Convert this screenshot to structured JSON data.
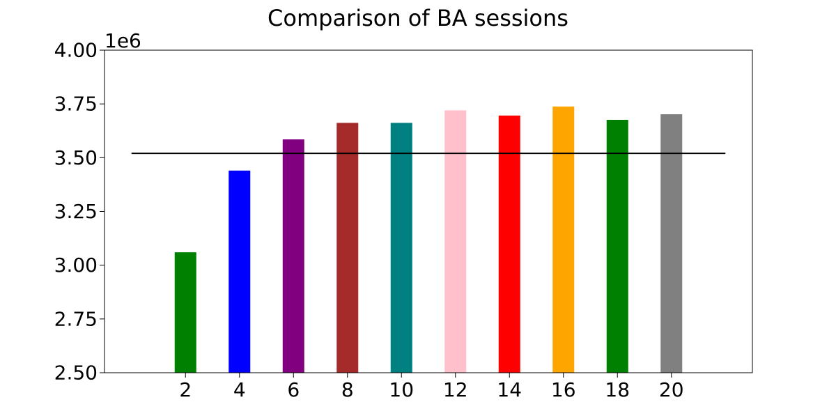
{
  "chart_data": {
    "type": "bar",
    "title": "Comparison of BA sessions",
    "xlabel": "",
    "ylabel": "",
    "y_offset_label": "1e6",
    "ylim": [
      2.5,
      4.0
    ],
    "xlim": [
      -1,
      23
    ],
    "y_ticks": [
      2.5,
      2.75,
      3.0,
      3.25,
      3.5,
      3.75,
      4.0
    ],
    "y_tick_labels": [
      "2.50",
      "2.75",
      "3.00",
      "3.25",
      "3.50",
      "3.75",
      "4.00"
    ],
    "categories": [
      "2",
      "4",
      "6",
      "8",
      "10",
      "12",
      "14",
      "16",
      "18",
      "20"
    ],
    "x": [
      2,
      4,
      6,
      8,
      10,
      12,
      14,
      16,
      18,
      20
    ],
    "values": [
      3.06,
      3.44,
      3.585,
      3.662,
      3.662,
      3.72,
      3.696,
      3.738,
      3.676,
      3.702
    ],
    "colors": [
      "#008000",
      "#0000ff",
      "#800080",
      "#a52a2a",
      "#008080",
      "#ffc0cb",
      "#ff0000",
      "#ffa500",
      "#008000",
      "#808080"
    ],
    "reference_line": {
      "y": 3.52,
      "x_range": [
        0,
        22
      ],
      "color": "#000000"
    },
    "grid": false,
    "legend": "none"
  }
}
